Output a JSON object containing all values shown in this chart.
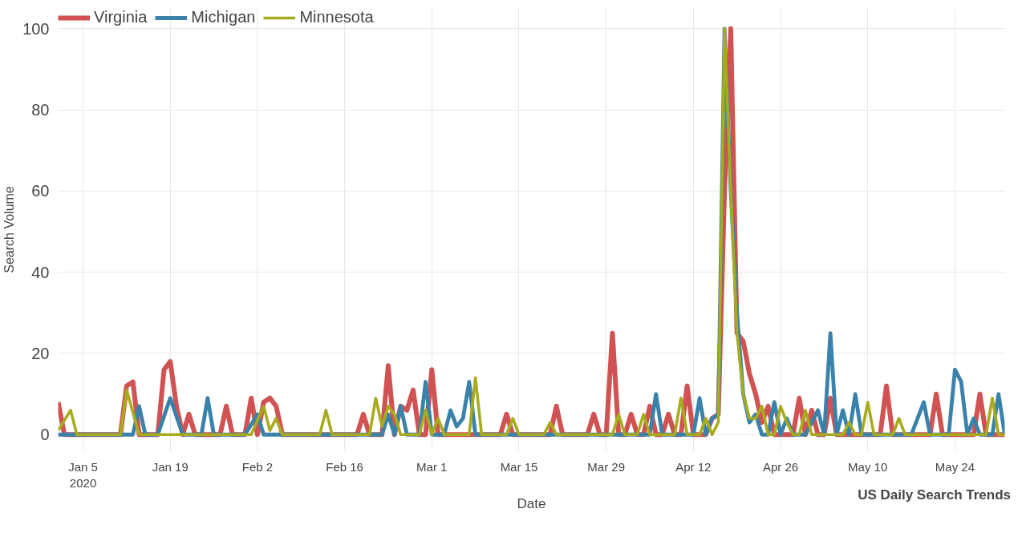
{
  "chart_data": {
    "type": "line",
    "xlabel": "Date",
    "ylabel": "Search Volume",
    "annotations": [
      "US Daily Search Trends"
    ],
    "xlim": [
      "2020-01-01",
      "2020-06-01"
    ],
    "ylim": [
      -4,
      105
    ],
    "xticks": [
      {
        "value": "2020-01-05",
        "label": "Jan 5\n2020"
      },
      {
        "value": "2020-01-19",
        "label": "Jan 19"
      },
      {
        "value": "2020-02-02",
        "label": "Feb 2"
      },
      {
        "value": "2020-02-16",
        "label": "Feb 16"
      },
      {
        "value": "2020-03-01",
        "label": "Mar 1"
      },
      {
        "value": "2020-03-15",
        "label": "Mar 15"
      },
      {
        "value": "2020-03-29",
        "label": "Mar 29"
      },
      {
        "value": "2020-04-12",
        "label": "Apr 12"
      },
      {
        "value": "2020-04-26",
        "label": "Apr 26"
      },
      {
        "value": "2020-05-10",
        "label": "May 10"
      },
      {
        "value": "2020-05-24",
        "label": "May 24"
      }
    ],
    "yticks": [
      0,
      20,
      40,
      60,
      80,
      100
    ],
    "grid": true,
    "legend": "top left",
    "marker": "none",
    "line_style": "solid",
    "series": [
      {
        "name": "Virginia",
        "color": "#d05252",
        "x": [
          "2020-01-01",
          "2020-01-02",
          "2020-01-11",
          "2020-01-12",
          "2020-01-13",
          "2020-01-14",
          "2020-01-17",
          "2020-01-18",
          "2020-01-19",
          "2020-01-20",
          "2020-01-21",
          "2020-01-22",
          "2020-01-23",
          "2020-01-27",
          "2020-01-28",
          "2020-01-29",
          "2020-01-31",
          "2020-02-01",
          "2020-02-02",
          "2020-02-03",
          "2020-02-04",
          "2020-02-05",
          "2020-02-06",
          "2020-02-18",
          "2020-02-19",
          "2020-02-20",
          "2020-02-22",
          "2020-02-23",
          "2020-02-24",
          "2020-02-25",
          "2020-02-26",
          "2020-02-27",
          "2020-02-28",
          "2020-02-29",
          "2020-03-01",
          "2020-03-02",
          "2020-03-12",
          "2020-03-13",
          "2020-03-14",
          "2020-03-20",
          "2020-03-21",
          "2020-03-22",
          "2020-03-26",
          "2020-03-27",
          "2020-03-28",
          "2020-03-29",
          "2020-03-30",
          "2020-03-31",
          "2020-04-01",
          "2020-04-02",
          "2020-04-03",
          "2020-04-04",
          "2020-04-05",
          "2020-04-06",
          "2020-04-07",
          "2020-04-08",
          "2020-04-09",
          "2020-04-10",
          "2020-04-11",
          "2020-04-12",
          "2020-04-14",
          "2020-04-15",
          "2020-04-16",
          "2020-04-17",
          "2020-04-18",
          "2020-04-19",
          "2020-04-20",
          "2020-04-21",
          "2020-04-22",
          "2020-04-23",
          "2020-04-24",
          "2020-04-25",
          "2020-04-28",
          "2020-04-29",
          "2020-04-30",
          "2020-05-01",
          "2020-05-02",
          "2020-05-03",
          "2020-05-04",
          "2020-05-05",
          "2020-05-12",
          "2020-05-13",
          "2020-05-14",
          "2020-05-20",
          "2020-05-21",
          "2020-05-22",
          "2020-05-27",
          "2020-05-28",
          "2020-05-29",
          "2020-06-01"
        ],
        "values": [
          8,
          0,
          0,
          12,
          13,
          0,
          0,
          16,
          18,
          7,
          0,
          5,
          0,
          0,
          7,
          0,
          0,
          9,
          0,
          8,
          9,
          7,
          0,
          0,
          5,
          0,
          0,
          17,
          0,
          7,
          6,
          11,
          0,
          0,
          16,
          0,
          0,
          5,
          0,
          0,
          7,
          0,
          0,
          5,
          0,
          0,
          25,
          0,
          0,
          5,
          0,
          0,
          7,
          0,
          0,
          5,
          0,
          0,
          12,
          0,
          0,
          4,
          5,
          60,
          100,
          25,
          23,
          15,
          10,
          3,
          7,
          0,
          0,
          9,
          0,
          6,
          0,
          0,
          9,
          0,
          0,
          12,
          0,
          0,
          10,
          0,
          0,
          10,
          0,
          0
        ]
      },
      {
        "name": "Michigan",
        "color": "#3a82aa",
        "x": [
          "2020-01-01",
          "2020-01-13",
          "2020-01-14",
          "2020-01-15",
          "2020-01-17",
          "2020-01-19",
          "2020-01-21",
          "2020-01-24",
          "2020-01-25",
          "2020-01-26",
          "2020-01-31",
          "2020-02-02",
          "2020-02-03",
          "2020-02-22",
          "2020-02-23",
          "2020-02-24",
          "2020-02-25",
          "2020-02-26",
          "2020-02-28",
          "2020-02-29",
          "2020-03-01",
          "2020-03-03",
          "2020-03-04",
          "2020-03-05",
          "2020-03-06",
          "2020-03-07",
          "2020-03-08",
          "2020-04-05",
          "2020-04-06",
          "2020-04-07",
          "2020-04-12",
          "2020-04-13",
          "2020-04-14",
          "2020-04-15",
          "2020-04-16",
          "2020-04-17",
          "2020-04-18",
          "2020-04-19",
          "2020-04-20",
          "2020-04-21",
          "2020-04-22",
          "2020-04-23",
          "2020-04-24",
          "2020-04-25",
          "2020-04-26",
          "2020-04-27",
          "2020-04-28",
          "2020-04-30",
          "2020-05-02",
          "2020-05-03",
          "2020-05-04",
          "2020-05-05",
          "2020-05-06",
          "2020-05-07",
          "2020-05-08",
          "2020-05-09",
          "2020-05-17",
          "2020-05-19",
          "2020-05-20",
          "2020-05-23",
          "2020-05-24",
          "2020-05-25",
          "2020-05-26",
          "2020-05-27",
          "2020-05-28",
          "2020-05-30",
          "2020-05-31",
          "2020-06-01"
        ],
        "values": [
          0,
          0,
          7,
          0,
          0,
          9,
          0,
          0,
          9,
          0,
          0,
          5,
          0,
          0,
          5,
          0,
          7,
          0,
          0,
          13,
          0,
          0,
          6,
          2,
          4,
          13,
          0,
          0,
          10,
          0,
          0,
          9,
          0,
          4,
          5,
          100,
          60,
          30,
          10,
          3,
          5,
          0,
          0,
          8,
          0,
          4,
          0,
          0,
          6,
          0,
          25,
          0,
          6,
          0,
          10,
          0,
          0,
          8,
          0,
          0,
          16,
          13,
          0,
          4,
          0,
          0,
          10,
          0
        ]
      },
      {
        "name": "Minnesota",
        "color": "#a8ab1d",
        "x": [
          "2020-01-01",
          "2020-01-03",
          "2020-01-04",
          "2020-01-11",
          "2020-01-12",
          "2020-01-14",
          "2020-02-01",
          "2020-02-03",
          "2020-02-04",
          "2020-02-05",
          "2020-02-06",
          "2020-02-12",
          "2020-02-13",
          "2020-02-14",
          "2020-02-20",
          "2020-02-21",
          "2020-02-22",
          "2020-02-23",
          "2020-02-24",
          "2020-02-25",
          "2020-02-28",
          "2020-02-29",
          "2020-03-01",
          "2020-03-02",
          "2020-03-03",
          "2020-03-07",
          "2020-03-08",
          "2020-03-09",
          "2020-03-13",
          "2020-03-14",
          "2020-03-15",
          "2020-03-19",
          "2020-03-20",
          "2020-03-21",
          "2020-03-30",
          "2020-03-31",
          "2020-04-01",
          "2020-04-03",
          "2020-04-04",
          "2020-04-05",
          "2020-04-09",
          "2020-04-10",
          "2020-04-11",
          "2020-04-13",
          "2020-04-14",
          "2020-04-15",
          "2020-04-16",
          "2020-04-17",
          "2020-04-18",
          "2020-04-19",
          "2020-04-20",
          "2020-04-21",
          "2020-04-22",
          "2020-04-23",
          "2020-04-24",
          "2020-04-25",
          "2020-04-26",
          "2020-04-27",
          "2020-04-28",
          "2020-04-29",
          "2020-04-30",
          "2020-05-01",
          "2020-05-06",
          "2020-05-07",
          "2020-05-08",
          "2020-05-09",
          "2020-05-10",
          "2020-05-11",
          "2020-05-14",
          "2020-05-15",
          "2020-05-16",
          "2020-05-29",
          "2020-05-30",
          "2020-05-31",
          "2020-06-01"
        ],
        "values": [
          1,
          6,
          0,
          0,
          11,
          0,
          0,
          7,
          1,
          4,
          0,
          0,
          6,
          0,
          0,
          9,
          2,
          7,
          5,
          0,
          0,
          6,
          0,
          4,
          0,
          0,
          14,
          0,
          0,
          4,
          0,
          0,
          3,
          0,
          0,
          5,
          0,
          0,
          5,
          0,
          0,
          9,
          0,
          0,
          4,
          0,
          3,
          100,
          60,
          25,
          10,
          4,
          4,
          7,
          0,
          0,
          7,
          3,
          0,
          0,
          6,
          0,
          0,
          3,
          0,
          0,
          8,
          0,
          0,
          4,
          0,
          0,
          9,
          0,
          0
        ]
      }
    ]
  }
}
